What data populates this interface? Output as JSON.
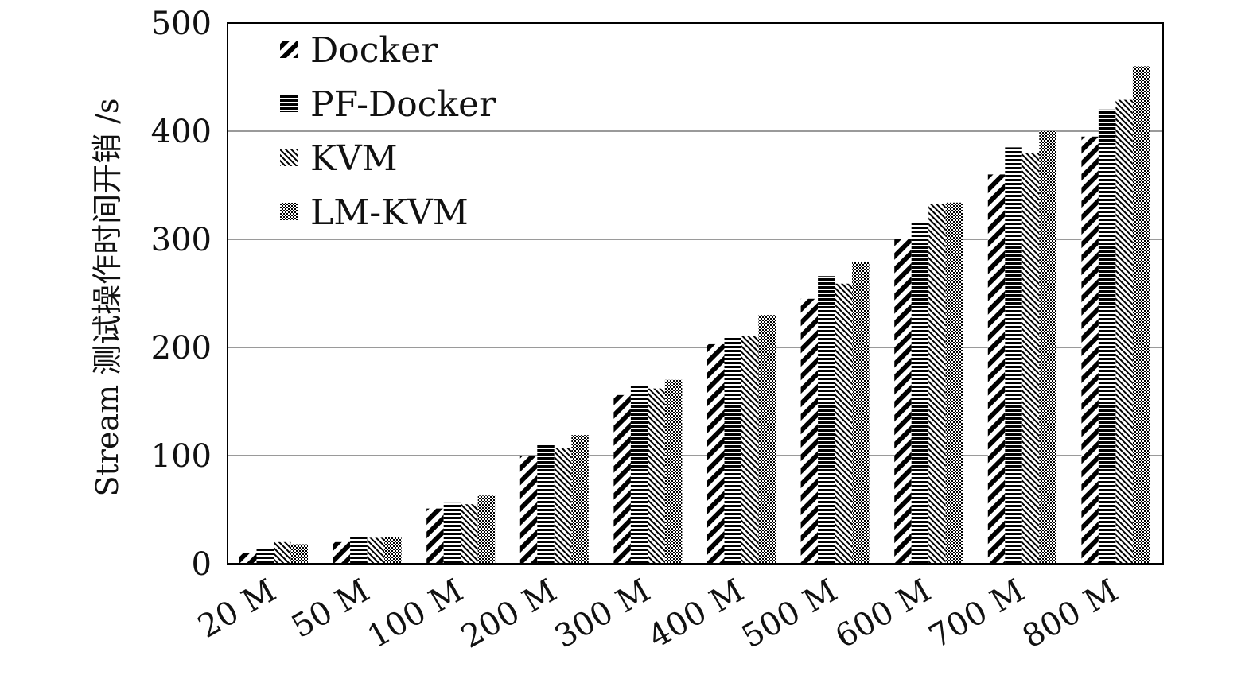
{
  "chart_data": {
    "type": "bar",
    "title": "",
    "xlabel": "",
    "ylabel": "Stream 测试操作时间开销 /s",
    "ylim": [
      0,
      500
    ],
    "yticks": [
      0,
      100,
      200,
      300,
      400,
      500
    ],
    "grid": true,
    "legend_position": "top-left",
    "categories": [
      "20 M",
      "50 M",
      "100 M",
      "200 M",
      "300 M",
      "400 M",
      "500 M",
      "600 M",
      "700 M",
      "800 M"
    ],
    "series": [
      {
        "name": "Docker",
        "pattern": "diagonal-thick",
        "values": [
          10,
          20,
          51,
          100,
          156,
          203,
          245,
          300,
          360,
          395
        ]
      },
      {
        "name": "PF-Docker",
        "pattern": "horizontal",
        "values": [
          14,
          25,
          56,
          110,
          165,
          210,
          266,
          315,
          385,
          420
        ]
      },
      {
        "name": "KVM",
        "pattern": "diagonal-fine",
        "values": [
          20,
          24,
          55,
          107,
          162,
          211,
          259,
          333,
          380,
          429
        ]
      },
      {
        "name": "LM-KVM",
        "pattern": "checker",
        "values": [
          18,
          25,
          63,
          119,
          170,
          230,
          279,
          334,
          400,
          460
        ]
      }
    ]
  }
}
